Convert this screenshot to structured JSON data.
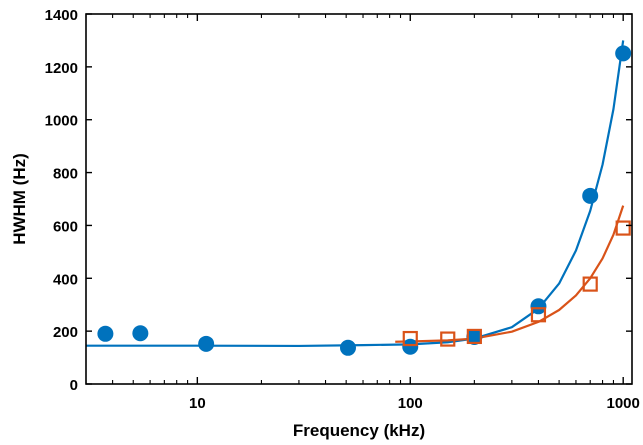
{
  "chart_data": {
    "type": "scatter",
    "title": "",
    "xlabel": "Frequency (kHz)",
    "ylabel": "HWHM (Hz)",
    "xscale": "log",
    "xlim": [
      3,
      1100
    ],
    "ylim": [
      0,
      1400
    ],
    "xticks": [
      10,
      100,
      1000
    ],
    "xtick_labels": [
      "10",
      "100",
      "1000"
    ],
    "yticks": [
      0,
      200,
      400,
      600,
      800,
      1000,
      1200,
      1400
    ],
    "ytick_labels": [
      "0",
      "200",
      "400",
      "600",
      "800",
      "1000",
      "1200",
      "1400"
    ],
    "grid": false,
    "legend": "none",
    "series": [
      {
        "marker": "filled-circle",
        "color": "#0072BD",
        "points": [
          {
            "x": 3.7,
            "y": 190
          },
          {
            "x": 5.4,
            "y": 192
          },
          {
            "x": 11,
            "y": 152
          },
          {
            "x": 51,
            "y": 137
          },
          {
            "x": 100,
            "y": 141
          },
          {
            "x": 200,
            "y": 178
          },
          {
            "x": 400,
            "y": 294
          },
          {
            "x": 700,
            "y": 712
          },
          {
            "x": 1000,
            "y": 1251
          }
        ],
        "fit": [
          {
            "x": 3,
            "y": 145
          },
          {
            "x": 10,
            "y": 145
          },
          {
            "x": 30,
            "y": 144
          },
          {
            "x": 60,
            "y": 147
          },
          {
            "x": 100,
            "y": 150
          },
          {
            "x": 150,
            "y": 158
          },
          {
            "x": 200,
            "y": 172
          },
          {
            "x": 300,
            "y": 215
          },
          {
            "x": 400,
            "y": 285
          },
          {
            "x": 500,
            "y": 380
          },
          {
            "x": 600,
            "y": 505
          },
          {
            "x": 700,
            "y": 655
          },
          {
            "x": 800,
            "y": 830
          },
          {
            "x": 900,
            "y": 1040
          },
          {
            "x": 1000,
            "y": 1300
          }
        ]
      },
      {
        "marker": "open-square",
        "color": "#D95319",
        "points": [
          {
            "x": 100,
            "y": 172
          },
          {
            "x": 150,
            "y": 170
          },
          {
            "x": 200,
            "y": 180
          },
          {
            "x": 400,
            "y": 262
          },
          {
            "x": 700,
            "y": 378
          },
          {
            "x": 1000,
            "y": 590
          }
        ],
        "fit": [
          {
            "x": 85,
            "y": 160
          },
          {
            "x": 100,
            "y": 161
          },
          {
            "x": 150,
            "y": 165
          },
          {
            "x": 200,
            "y": 172
          },
          {
            "x": 300,
            "y": 198
          },
          {
            "x": 400,
            "y": 235
          },
          {
            "x": 500,
            "y": 280
          },
          {
            "x": 600,
            "y": 335
          },
          {
            "x": 700,
            "y": 400
          },
          {
            "x": 800,
            "y": 475
          },
          {
            "x": 900,
            "y": 565
          },
          {
            "x": 1000,
            "y": 675
          }
        ]
      }
    ]
  }
}
